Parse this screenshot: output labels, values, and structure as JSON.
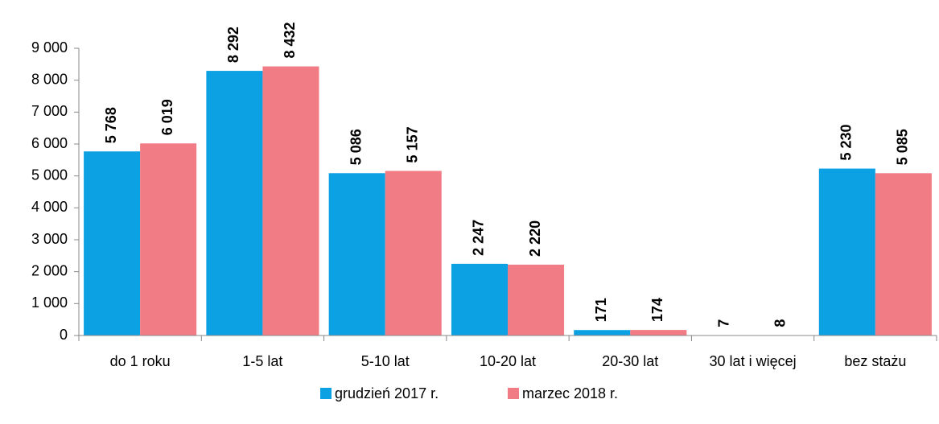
{
  "chart_data": {
    "type": "bar",
    "categories": [
      "do 1 roku",
      "1-5 lat",
      "5-10 lat",
      "10-20 lat",
      "20-30 lat",
      "30 lat i więcej",
      "bez stażu"
    ],
    "series": [
      {
        "name": "grudzień 2017 r.",
        "color": "#0ba1e2",
        "values": [
          5768,
          8292,
          5086,
          2247,
          171,
          7,
          5230
        ],
        "value_labels": [
          "5 768",
          "8 292",
          "5 086",
          "2 247",
          "171",
          "7",
          "5 230"
        ]
      },
      {
        "name": "marzec 2018 r.",
        "color": "#f17c86",
        "values": [
          6019,
          8432,
          5157,
          2220,
          174,
          8,
          5085
        ],
        "value_labels": [
          "6 019",
          "8 432",
          "5 157",
          "2 220",
          "174",
          "8",
          "5 085"
        ]
      }
    ],
    "ylim": [
      0,
      9000
    ],
    "yticks": [
      {
        "value": 0,
        "label": "0"
      },
      {
        "value": 1000,
        "label": "1 000"
      },
      {
        "value": 2000,
        "label": "2 000"
      },
      {
        "value": 3000,
        "label": "3 000"
      },
      {
        "value": 4000,
        "label": "4 000"
      },
      {
        "value": 5000,
        "label": "5 000"
      },
      {
        "value": 6000,
        "label": "6 000"
      },
      {
        "value": 7000,
        "label": "7 000"
      },
      {
        "value": 8000,
        "label": "8 000"
      },
      {
        "value": 9000,
        "label": "9 000"
      }
    ],
    "legend": "bottom"
  }
}
